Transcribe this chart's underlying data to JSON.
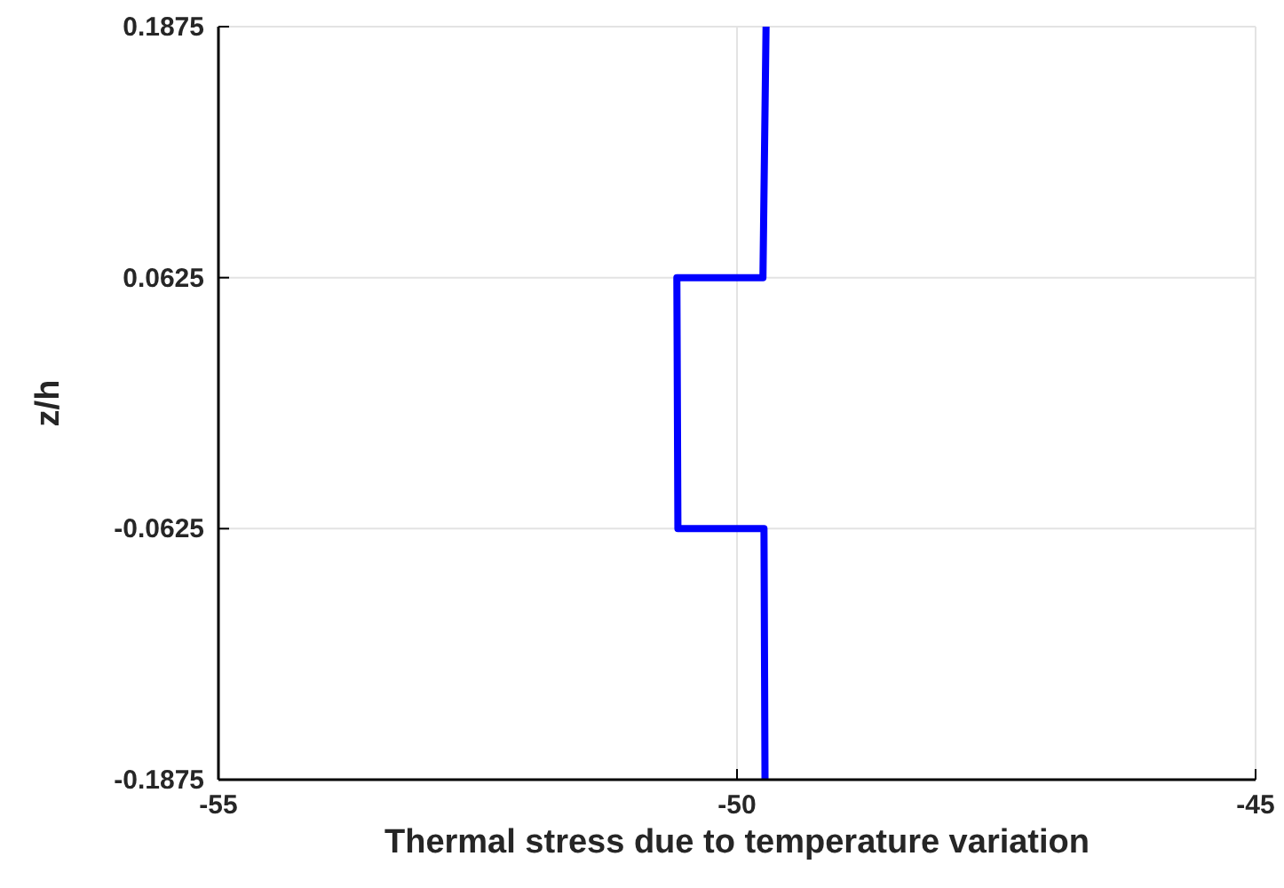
{
  "chart_data": {
    "type": "line",
    "xlabel": "Thermal stress due to temperature variation",
    "ylabel": "z/h",
    "xlim": [
      -55,
      -45
    ],
    "xticks": [
      -55,
      -50,
      -45
    ],
    "ylim": [
      -0.1875,
      0.1875
    ],
    "yticks": [
      -0.1875,
      -0.0625,
      0.0625,
      0.1875
    ],
    "grid": true,
    "x": [
      -49.73,
      -49.74,
      -50.57,
      -50.58,
      -49.75,
      -49.72
    ],
    "series": [
      {
        "color": "#0000ff",
        "values": [
          -0.1875,
          -0.0625,
          -0.0625,
          0.0625,
          0.0625,
          0.1875
        ]
      }
    ]
  }
}
